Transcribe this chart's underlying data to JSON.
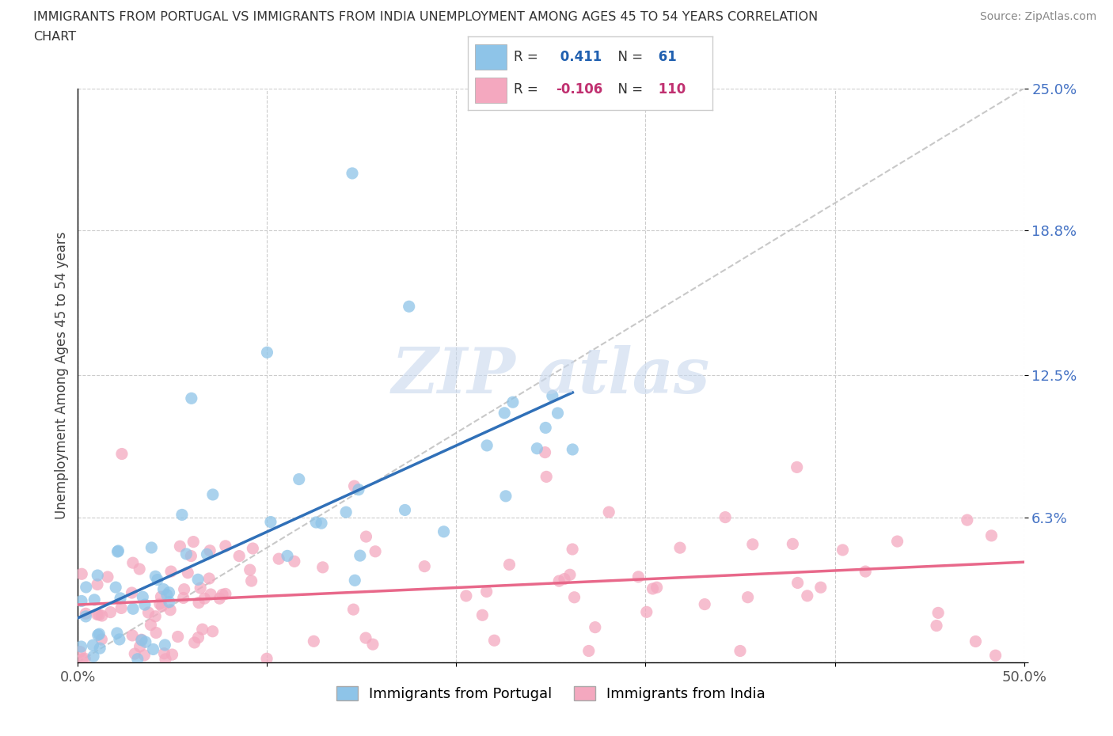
{
  "title_line1": "IMMIGRANTS FROM PORTUGAL VS IMMIGRANTS FROM INDIA UNEMPLOYMENT AMONG AGES 45 TO 54 YEARS CORRELATION",
  "title_line2": "CHART",
  "source_text": "Source: ZipAtlas.com",
  "ylabel": "Unemployment Among Ages 45 to 54 years",
  "xlim": [
    0.0,
    0.5
  ],
  "ylim": [
    0.0,
    0.25
  ],
  "R_portugal": 0.411,
  "N_portugal": 61,
  "R_india": -0.106,
  "N_india": 110,
  "color_portugal": "#8ec4e8",
  "color_india": "#f4a8bf",
  "line_color_portugal": "#3070b8",
  "line_color_india": "#e8688a",
  "ytick_color": "#4472c4",
  "background_color": "#ffffff",
  "grid_color": "#cccccc",
  "diag_color": "#bbbbbb"
}
